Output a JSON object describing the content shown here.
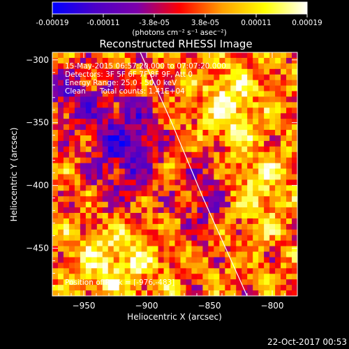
{
  "chart_data": {
    "type": "heatmap",
    "title": "Reconstructed RHESSI Image",
    "xlabel": "Heliocentric X (arcsec)",
    "ylabel": "Heliocentric Y (arcsec)",
    "xlim": [
      -975,
      -780
    ],
    "ylim": [
      -488,
      -294
    ],
    "xticks": [
      -950,
      -900,
      -850,
      -800
    ],
    "yticks": [
      -300,
      -350,
      -400,
      -450
    ],
    "colorbar": {
      "label": "(photons cm⁻² s⁻¹ asec⁻²)",
      "range": [
        -0.00019,
        0.00019
      ],
      "ticks": [
        "-0.00019",
        "-0.00011",
        "-3.8e-05",
        "3.8e-05",
        "0.00011",
        "0.00019"
      ],
      "colormap": [
        "#0000ff",
        "#4b00c8",
        "#7d00aa",
        "#ff0000",
        "#ffa000",
        "#ffff00",
        "#ffffff"
      ]
    },
    "annotations": [
      "15-May-2015 06:57:20.000 to 07:07:20.000",
      "Detectors: 3F 5F 6F 7F 8F 9F, Att 0",
      "Energy Range: 25.0 - 50.0 keV",
      "Clean      Total counts: 1.41E+04"
    ],
    "peak_label": "Position of Peak = [-976,-483]",
    "limb_curve": [
      [
        -905,
        -294
      ],
      [
        -880,
        -350
      ],
      [
        -855,
        -410
      ],
      [
        -820,
        -488
      ]
    ]
  },
  "footer": {
    "timestamp": "22-Oct-2017 00:53"
  },
  "colors": {
    "background": "#000000",
    "text": "#ffffff"
  }
}
